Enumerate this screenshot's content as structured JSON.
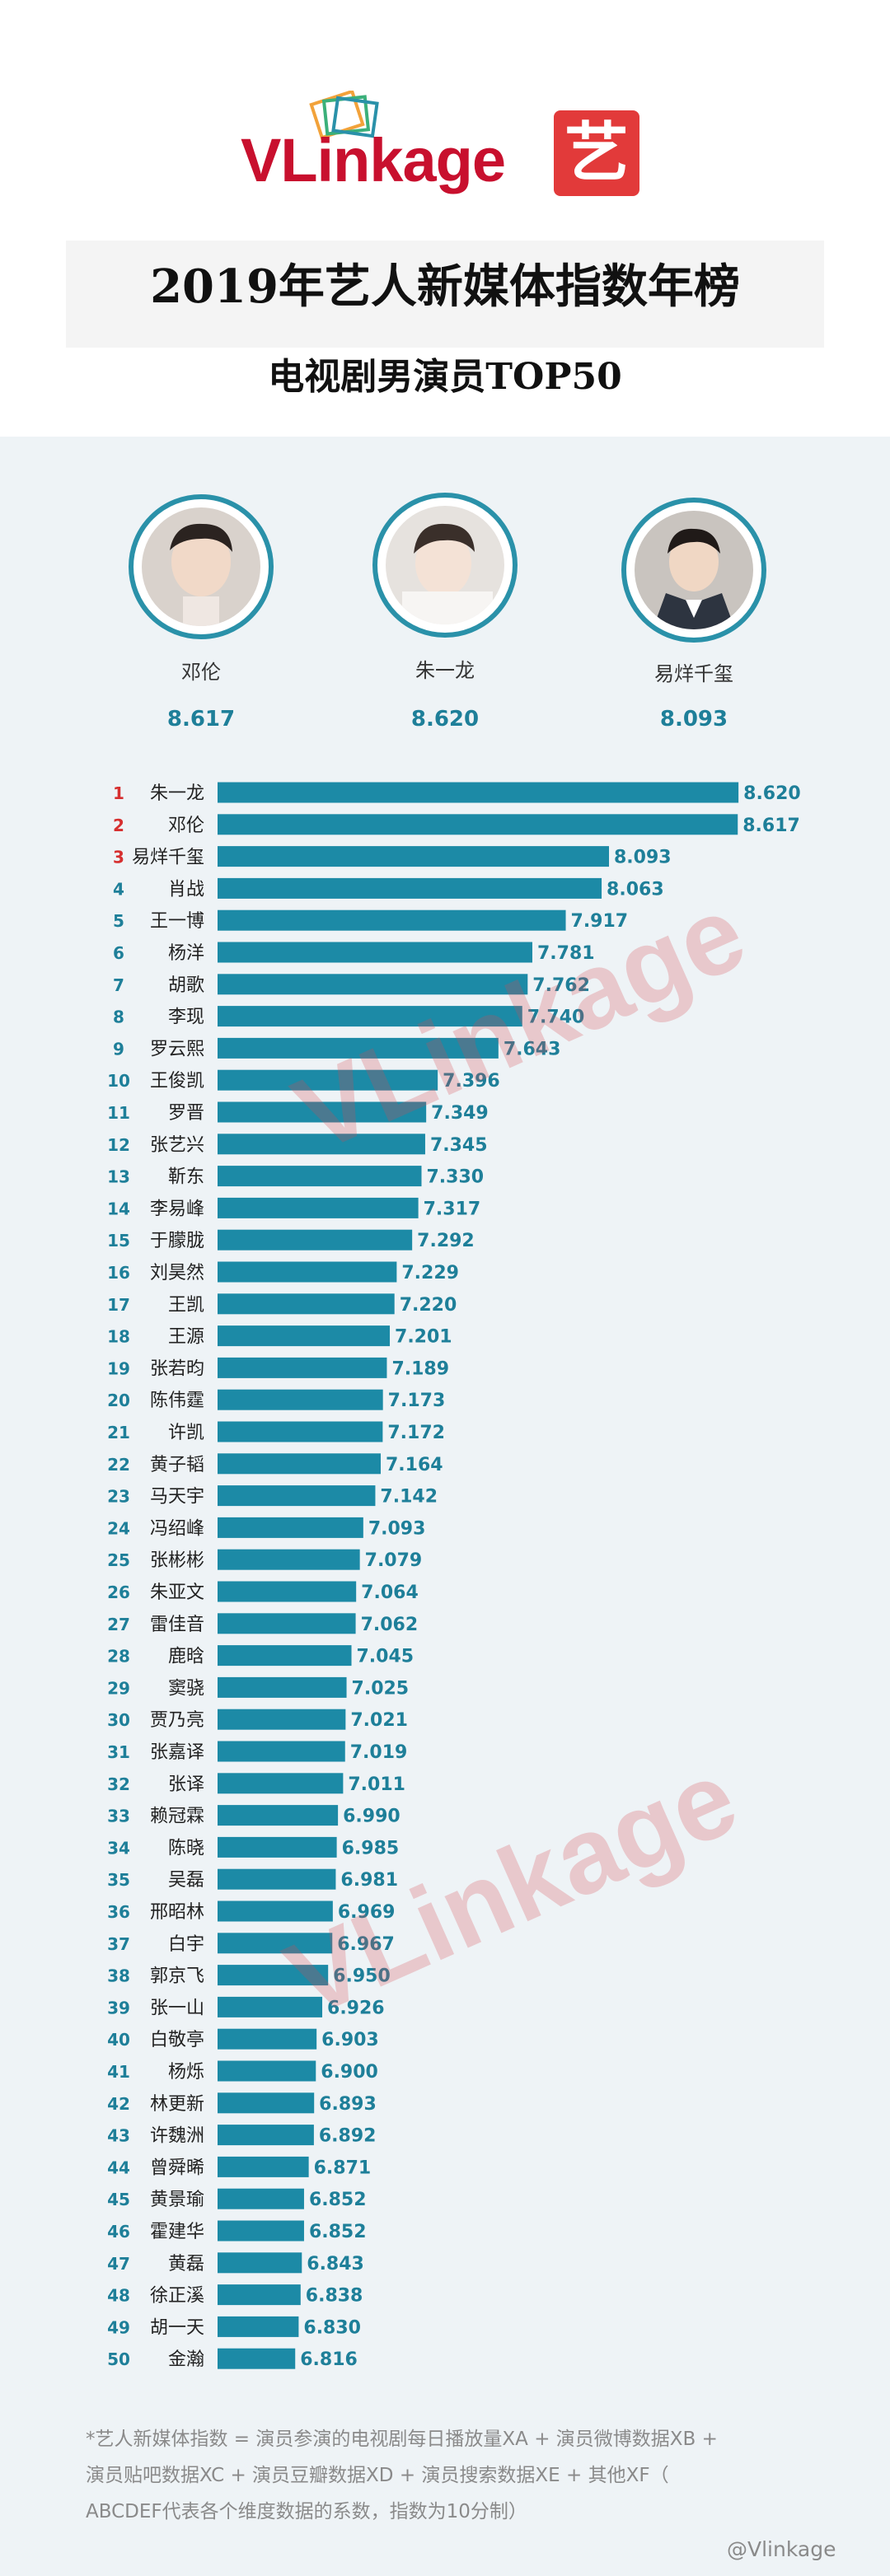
{
  "brand": {
    "logo_text_v": "V",
    "logo_text_rest": "Linkage",
    "badge_char": "艺"
  },
  "title": {
    "main": "2019年艺人新媒体指数年榜",
    "sub": "电视剧男演员TOP50"
  },
  "top3": [
    {
      "name": "邓伦",
      "score": "8.617"
    },
    {
      "name": "朱一龙",
      "score": "8.620"
    },
    {
      "name": "易烊千玺",
      "score": "8.093"
    }
  ],
  "watermark_text": "VLinkage",
  "colors": {
    "bar": "#1c8aa6",
    "rank_top3": "#d62f2f",
    "rank_other": "#1e7f99",
    "value": "#1e7f99"
  },
  "chart_data": {
    "type": "bar",
    "orientation": "horizontal",
    "title": "电视剧男演员TOP50",
    "xlim": [
      6.5,
      8.7
    ],
    "grid": false,
    "legend": "none",
    "categories": [
      "朱一龙",
      "邓伦",
      "易烊千玺",
      "肖战",
      "王一博",
      "杨洋",
      "胡歌",
      "李现",
      "罗云熙",
      "王俊凯",
      "罗晋",
      "张艺兴",
      "靳东",
      "李易峰",
      "于朦胧",
      "刘昊然",
      "王凯",
      "王源",
      "张若昀",
      "陈伟霆",
      "许凯",
      "黄子韬",
      "马天宇",
      "冯绍峰",
      "张彬彬",
      "朱亚文",
      "雷佳音",
      "鹿晗",
      "窦骁",
      "贾乃亮",
      "张嘉译",
      "张译",
      "赖冠霖",
      "陈晓",
      "吴磊",
      "邢昭林",
      "白宇",
      "郭京飞",
      "张一山",
      "白敬亭",
      "杨烁",
      "林更新",
      "许魏洲",
      "曾舜晞",
      "黄景瑜",
      "霍建华",
      "黄磊",
      "徐正溪",
      "胡一天",
      "金瀚"
    ],
    "ranks": [
      "1",
      "2",
      "3",
      "4",
      "5",
      "6",
      "7",
      "8",
      "9",
      "10",
      "11",
      "12",
      "13",
      "14",
      "15",
      "16",
      "17",
      "18",
      "19",
      "20",
      "21",
      "22",
      "23",
      "24",
      "25",
      "26",
      "27",
      "28",
      "29",
      "30",
      "31",
      "32",
      "33",
      "34",
      "35",
      "36",
      "37",
      "38",
      "39",
      "40",
      "41",
      "42",
      "43",
      "44",
      "45",
      "46",
      "47",
      "48",
      "49",
      "50"
    ],
    "values": [
      8.62,
      8.617,
      8.093,
      8.063,
      7.917,
      7.781,
      7.762,
      7.74,
      7.643,
      7.396,
      7.349,
      7.345,
      7.33,
      7.317,
      7.292,
      7.229,
      7.22,
      7.201,
      7.189,
      7.173,
      7.172,
      7.164,
      7.142,
      7.093,
      7.079,
      7.064,
      7.062,
      7.045,
      7.025,
      7.021,
      7.019,
      7.011,
      6.99,
      6.985,
      6.981,
      6.969,
      6.967,
      6.95,
      6.926,
      6.903,
      6.9,
      6.893,
      6.892,
      6.871,
      6.852,
      6.852,
      6.843,
      6.838,
      6.83,
      6.816
    ],
    "value_labels": [
      "8.620",
      "8.617",
      "8.093",
      "8.063",
      "7.917",
      "7.781",
      "7.762",
      "7.740",
      "7.643",
      "7.396",
      "7.349",
      "7.345",
      "7.330",
      "7.317",
      "7.292",
      "7.229",
      "7.220",
      "7.201",
      "7.189",
      "7.173",
      "7.172",
      "7.164",
      "7.142",
      "7.093",
      "7.079",
      "7.064",
      "7.062",
      "7.045",
      "7.025",
      "7.021",
      "7.019",
      "7.011",
      "6.990",
      "6.985",
      "6.981",
      "6.969",
      "6.967",
      "6.950",
      "6.926",
      "6.903",
      "6.900",
      "6.893",
      "6.892",
      "6.871",
      "6.852",
      "6.852",
      "6.843",
      "6.838",
      "6.830",
      "6.816"
    ]
  },
  "footnote": {
    "line1": "*艺人新媒体指数 = 演员参演的电视剧每日播放量XA + 演员微博数据XB +",
    "line2": "演员贴吧数据XC + 演员豆瓣数据XD + 演员搜索数据XE + 其他XF（",
    "line3": "ABCDEF代表各个维度数据的系数，指数为10分制）"
  },
  "weibo_handle": "@Vlinkage"
}
